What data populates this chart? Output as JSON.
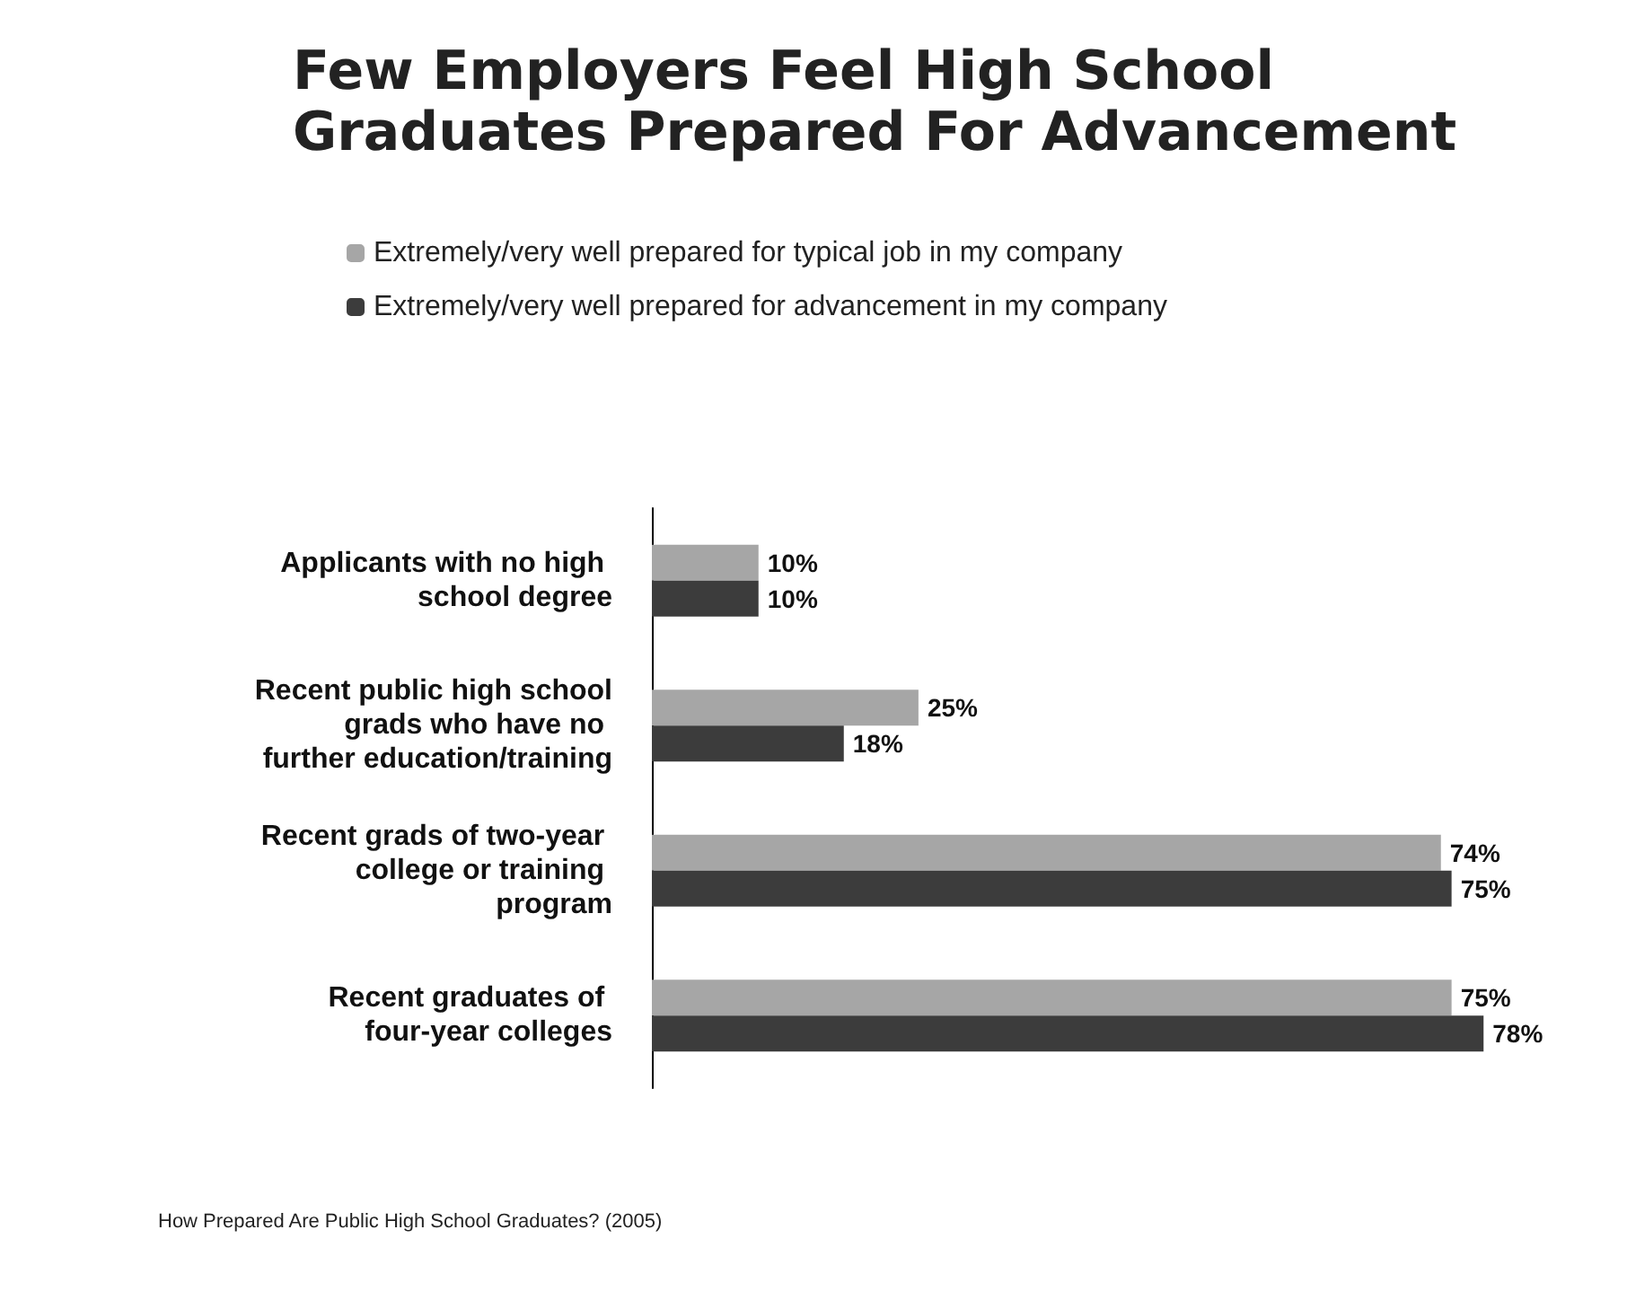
{
  "chart_data": {
    "type": "bar",
    "orientation": "horizontal",
    "title": "Few Employers Feel High School Graduates Prepared For Advancement",
    "categories": [
      "Applicants with no high school degree",
      "Recent public high school grads who have no further education/training",
      "Recent grads of two-year college or training program",
      "Recent graduates of four-year colleges"
    ],
    "series": [
      {
        "name": "Extremely/very well prepared for typical job in my company",
        "color": "#a6a6a6",
        "values": [
          10,
          25,
          74,
          75
        ],
        "value_labels": [
          "10%",
          "25%",
          "74%",
          "75%"
        ]
      },
      {
        "name": "Extremely/very well prepared for advancement in my company",
        "color": "#3c3c3c",
        "values": [
          10,
          18,
          75,
          78
        ],
        "value_labels": [
          "10%",
          "18%",
          "75%",
          "78%"
        ]
      }
    ],
    "legend": "top",
    "annotations": [
      "How Prepared Are Public High School Graduates? (2005)"
    ]
  }
}
